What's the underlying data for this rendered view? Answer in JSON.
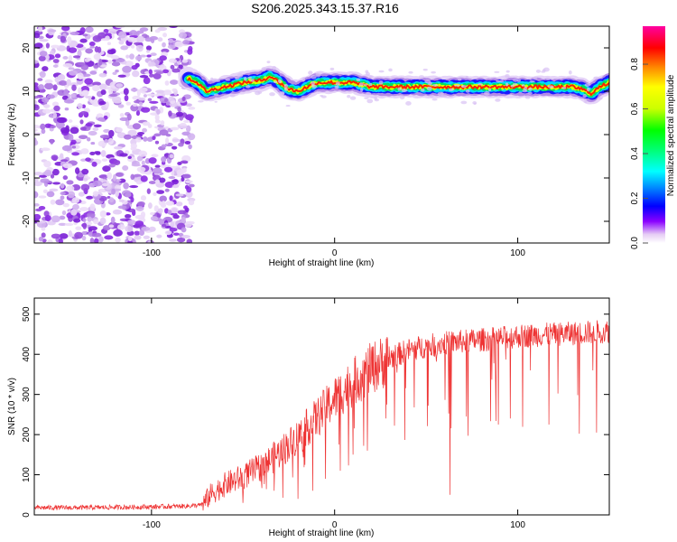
{
  "title": "S206.2025.343.15.37.R16",
  "chart_data": [
    {
      "type": "heatmap",
      "xlabel": "Height of straight line (km)",
      "ylabel": "Frequency (Hz)",
      "xlim": [
        -164,
        150
      ],
      "ylim": [
        -25,
        25
      ],
      "xticks": [
        -100,
        0,
        100
      ],
      "yticks": [
        -20,
        -10,
        0,
        10,
        20
      ],
      "noise_region_x": [
        -164,
        -78
      ],
      "ridge": {
        "x": [
          -80,
          -75,
          -70,
          -60,
          -50,
          -40,
          -35,
          -30,
          -25,
          -20,
          -15,
          -10,
          -5,
          0,
          10,
          20,
          30,
          40,
          50,
          60,
          70,
          80,
          90,
          100,
          110,
          120,
          130,
          135,
          140,
          145,
          150
        ],
        "y": [
          13,
          12,
          10,
          11,
          12,
          12.5,
          13.5,
          12,
          10.5,
          10,
          11,
          12,
          12,
          12,
          12,
          11,
          11,
          11,
          11,
          11,
          11,
          11,
          11,
          11,
          11,
          11,
          11,
          10.5,
          9.5,
          11,
          12
        ]
      },
      "colorbar": {
        "label": "Normalized spectral amplitude",
        "ticks": [
          0.0,
          0.2,
          0.4,
          0.6,
          0.8
        ],
        "range": [
          0,
          0.97
        ]
      }
    },
    {
      "type": "line",
      "xlabel": "Height of straight line (km)",
      "ylabel": "SNR (10 * v/v)",
      "xlim": [
        -164,
        150
      ],
      "ylim": [
        0,
        540
      ],
      "xticks": [
        -100,
        0,
        100
      ],
      "yticks": [
        0,
        100,
        200,
        300,
        400,
        500
      ],
      "series": [
        {
          "name": "SNR",
          "color": "#ee3333",
          "x": [
            -164,
            -140,
            -120,
            -100,
            -80,
            -72,
            -68,
            -60,
            -50,
            -40,
            -30,
            -20,
            -10,
            0,
            10,
            20,
            30,
            40,
            50,
            60,
            70,
            80,
            90,
            100,
            110,
            120,
            130,
            140,
            150
          ],
          "y": [
            18,
            18,
            19,
            20,
            22,
            25,
            50,
            75,
            95,
            120,
            155,
            195,
            240,
            290,
            330,
            365,
            390,
            410,
            420,
            428,
            432,
            436,
            440,
            445,
            448,
            450,
            452,
            455,
            458
          ],
          "dips": [
            {
              "x": -50,
              "y": 30
            },
            {
              "x": -33,
              "y": 60
            },
            {
              "x": -20,
              "y": 40
            },
            {
              "x": -12,
              "y": 60
            },
            {
              "x": -5,
              "y": 90
            },
            {
              "x": 3,
              "y": 110
            },
            {
              "x": 10,
              "y": 150
            },
            {
              "x": 18,
              "y": 160
            },
            {
              "x": 28,
              "y": 240
            },
            {
              "x": 63,
              "y": 50
            },
            {
              "x": 72,
              "y": 245
            },
            {
              "x": 96,
              "y": 240
            },
            {
              "x": 107,
              "y": 360
            },
            {
              "x": 117,
              "y": 225
            },
            {
              "x": 141,
              "y": 360
            },
            {
              "x": 143,
              "y": 205
            }
          ]
        }
      ]
    }
  ]
}
